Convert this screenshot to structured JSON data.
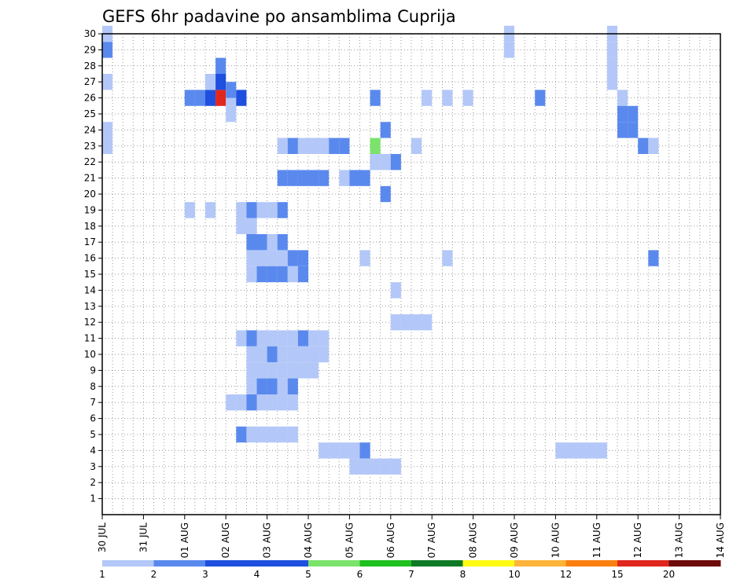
{
  "chart_data": {
    "type": "heatmap",
    "title": "GEFS 6hr padavine po ansamblima Cuprija",
    "xlabel": "",
    "ylabel": "",
    "x_tick_labels": [
      "30 JUL",
      "31 JUL",
      "01 AUG",
      "02 AUG",
      "03 AUG",
      "04 AUG",
      "05 AUG",
      "06 AUG",
      "07 AUG",
      "08 AUG",
      "09 AUG",
      "10 AUG",
      "11 AUG",
      "12 AUG",
      "13 AUG",
      "14 AUG"
    ],
    "y_tick_labels": [
      "1",
      "2",
      "3",
      "4",
      "5",
      "6",
      "7",
      "8",
      "9",
      "10",
      "11",
      "12",
      "13",
      "14",
      "15",
      "16",
      "17",
      "18",
      "19",
      "20",
      "21",
      "22",
      "23",
      "24",
      "25",
      "26",
      "27",
      "28",
      "29",
      "30"
    ],
    "xlim": [
      0,
      60
    ],
    "ylim": [
      0,
      30
    ],
    "grid": true,
    "colorbar": {
      "labels": [
        "1",
        "2",
        "3",
        "4",
        "5",
        "6",
        "7",
        "8",
        "10",
        "12",
        "15",
        "20"
      ],
      "colors": [
        "#b3c8f8",
        "#5a89ee",
        "#1f4fdf",
        "#1f4fdf",
        "#7be36b",
        "#1ec01e",
        "#0f7a25",
        "#fffa14",
        "#fcb43a",
        "#fc8010",
        "#e0271e",
        "#6e0a0a"
      ]
    },
    "cells": [
      [
        0.5,
        29,
        2
      ],
      [
        8.5,
        26,
        2
      ],
      [
        9.5,
        26,
        2
      ],
      [
        10.5,
        26,
        3
      ],
      [
        11.5,
        26,
        11
      ],
      [
        12.5,
        26,
        1
      ],
      [
        13.5,
        26,
        3
      ],
      [
        10.5,
        27,
        1
      ],
      [
        11.5,
        27,
        3
      ],
      [
        11.5,
        28,
        2
      ],
      [
        12.5,
        26.5,
        2
      ],
      [
        12.5,
        25,
        1
      ],
      [
        27.5,
        20,
        2
      ],
      [
        27.5,
        22,
        1
      ],
      [
        26.5,
        22,
        1
      ],
      [
        26.5,
        23,
        5
      ],
      [
        28.5,
        22,
        2
      ],
      [
        27.5,
        24,
        2
      ],
      [
        17.5,
        21,
        2
      ],
      [
        18.5,
        21,
        2
      ],
      [
        19.5,
        21,
        2
      ],
      [
        20.5,
        21,
        2
      ],
      [
        21.5,
        21,
        2
      ],
      [
        23.5,
        21,
        1
      ],
      [
        24.5,
        21,
        2
      ],
      [
        25.5,
        21,
        2
      ],
      [
        17.5,
        23,
        1
      ],
      [
        18.5,
        23,
        2
      ],
      [
        19.5,
        23,
        1
      ],
      [
        20.5,
        23,
        1
      ],
      [
        21.5,
        23,
        1
      ],
      [
        22.5,
        23,
        2
      ],
      [
        23.5,
        23,
        2
      ],
      [
        30.5,
        23,
        1
      ],
      [
        31.5,
        26,
        1
      ],
      [
        33.5,
        26,
        1
      ],
      [
        35.5,
        26,
        1
      ],
      [
        42.5,
        26,
        2
      ],
      [
        26.5,
        26,
        2
      ],
      [
        0.5,
        24,
        1
      ],
      [
        0.5,
        23,
        1
      ],
      [
        0.5,
        27,
        1
      ],
      [
        0.5,
        30,
        1
      ],
      [
        8.5,
        19,
        1
      ],
      [
        10.5,
        19,
        1
      ],
      [
        13.5,
        19,
        1
      ],
      [
        14.5,
        19,
        2
      ],
      [
        15.5,
        19,
        1
      ],
      [
        16.5,
        19,
        1
      ],
      [
        17.5,
        19,
        2
      ],
      [
        13.5,
        18,
        1
      ],
      [
        14.5,
        18,
        1
      ],
      [
        14.5,
        17,
        2
      ],
      [
        15.5,
        17,
        2
      ],
      [
        16.5,
        17,
        1
      ],
      [
        17.5,
        17,
        2
      ],
      [
        14.5,
        16,
        1
      ],
      [
        15.5,
        16,
        1
      ],
      [
        16.5,
        16,
        1
      ],
      [
        17.5,
        16,
        1
      ],
      [
        18.5,
        16,
        2
      ],
      [
        19.5,
        16,
        2
      ],
      [
        14.5,
        15,
        1
      ],
      [
        15.5,
        15,
        2
      ],
      [
        16.5,
        15,
        2
      ],
      [
        17.5,
        15,
        2
      ],
      [
        18.5,
        15,
        1
      ],
      [
        19.5,
        15,
        2
      ],
      [
        25.5,
        16,
        1
      ],
      [
        33.5,
        16,
        1
      ],
      [
        53.5,
        16,
        2
      ],
      [
        13.5,
        11,
        1
      ],
      [
        14.5,
        11,
        2
      ],
      [
        15.5,
        11,
        1
      ],
      [
        16.5,
        11,
        1
      ],
      [
        17.5,
        11,
        1
      ],
      [
        18.5,
        11,
        1
      ],
      [
        19.5,
        11,
        2
      ],
      [
        20.5,
        11,
        1
      ],
      [
        21.5,
        11,
        1
      ],
      [
        14.5,
        10,
        1
      ],
      [
        15.5,
        10,
        1
      ],
      [
        16.5,
        10,
        2
      ],
      [
        17.5,
        10,
        1
      ],
      [
        18.5,
        10,
        1
      ],
      [
        19.5,
        10,
        1
      ],
      [
        20.5,
        10,
        1
      ],
      [
        21.5,
        10,
        1
      ],
      [
        14.5,
        9,
        1
      ],
      [
        15.5,
        9,
        1
      ],
      [
        16.5,
        9,
        1
      ],
      [
        17.5,
        9,
        1
      ],
      [
        18.5,
        9,
        1
      ],
      [
        19.5,
        9,
        1
      ],
      [
        20.5,
        9,
        1
      ],
      [
        14.5,
        8,
        1
      ],
      [
        15.5,
        8,
        2
      ],
      [
        16.5,
        8,
        2
      ],
      [
        17.5,
        8,
        1
      ],
      [
        18.5,
        8,
        2
      ],
      [
        12.5,
        7,
        1
      ],
      [
        13.5,
        7,
        1
      ],
      [
        14.5,
        7,
        2
      ],
      [
        15.5,
        7,
        1
      ],
      [
        16.5,
        7,
        1
      ],
      [
        17.5,
        7,
        1
      ],
      [
        18.5,
        7,
        1
      ],
      [
        21.5,
        4,
        1
      ],
      [
        22.5,
        4,
        1
      ],
      [
        23.5,
        4,
        1
      ],
      [
        24.5,
        4,
        1
      ],
      [
        25.5,
        4,
        2
      ],
      [
        13.5,
        5,
        2
      ],
      [
        14.5,
        5,
        1
      ],
      [
        15.5,
        5,
        1
      ],
      [
        16.5,
        5,
        1
      ],
      [
        17.5,
        5,
        1
      ],
      [
        18.5,
        5,
        1
      ],
      [
        44.5,
        4,
        1
      ],
      [
        45.5,
        4,
        1
      ],
      [
        46.5,
        4,
        1
      ],
      [
        47.5,
        4,
        1
      ],
      [
        48.5,
        4,
        1
      ],
      [
        39.5,
        30,
        1
      ],
      [
        39.5,
        29,
        1
      ],
      [
        49.5,
        30,
        1
      ],
      [
        49.5,
        29,
        1
      ],
      [
        49.5,
        28,
        1
      ],
      [
        49.5,
        27,
        1
      ],
      [
        50.5,
        26,
        1
      ],
      [
        50.5,
        25,
        2
      ],
      [
        50.5,
        24,
        2
      ],
      [
        51.5,
        25,
        2
      ],
      [
        51.5,
        24,
        2
      ],
      [
        52.5,
        23,
        2
      ],
      [
        53.5,
        23,
        1
      ],
      [
        28.5,
        14,
        1
      ],
      [
        28.5,
        12,
        1
      ],
      [
        29.5,
        12,
        1
      ],
      [
        30.5,
        12,
        1
      ],
      [
        31.5,
        12,
        1
      ],
      [
        24.5,
        3,
        1
      ],
      [
        25.5,
        3,
        1
      ],
      [
        26.5,
        3,
        1
      ],
      [
        27.5,
        3,
        1
      ],
      [
        28.5,
        3,
        1
      ]
    ]
  }
}
